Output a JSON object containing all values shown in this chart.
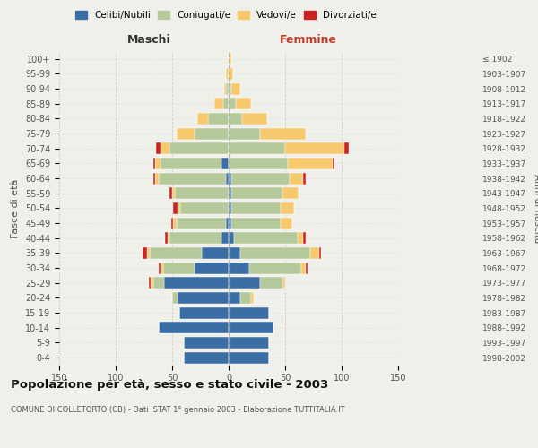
{
  "age_groups": [
    "100+",
    "95-99",
    "90-94",
    "85-89",
    "80-84",
    "75-79",
    "70-74",
    "65-69",
    "60-64",
    "55-59",
    "50-54",
    "45-49",
    "40-44",
    "35-39",
    "30-34",
    "25-29",
    "20-24",
    "15-19",
    "10-14",
    "5-9",
    "0-4"
  ],
  "birth_years": [
    "≤ 1902",
    "1903-1907",
    "1908-1912",
    "1913-1917",
    "1918-1922",
    "1923-1927",
    "1928-1932",
    "1933-1937",
    "1938-1942",
    "1943-1947",
    "1948-1952",
    "1953-1957",
    "1958-1962",
    "1963-1967",
    "1968-1972",
    "1973-1977",
    "1978-1982",
    "1983-1987",
    "1988-1992",
    "1993-1997",
    "1998-2002"
  ],
  "male_celibi": [
    0,
    0,
    0,
    0,
    0,
    0,
    0,
    6,
    2,
    0,
    0,
    2,
    6,
    24,
    30,
    57,
    45,
    44,
    62,
    40,
    40
  ],
  "male_coniugati": [
    0,
    0,
    2,
    5,
    18,
    30,
    52,
    54,
    60,
    48,
    43,
    44,
    46,
    46,
    28,
    10,
    5,
    0,
    0,
    0,
    0
  ],
  "male_vedovi": [
    0,
    2,
    2,
    8,
    10,
    16,
    8,
    5,
    3,
    2,
    2,
    3,
    2,
    2,
    2,
    2,
    0,
    0,
    0,
    0,
    0
  ],
  "male_divorziati": [
    0,
    0,
    0,
    0,
    0,
    0,
    4,
    2,
    2,
    2,
    4,
    2,
    2,
    4,
    2,
    2,
    0,
    0,
    0,
    0,
    0
  ],
  "female_nubili": [
    0,
    0,
    0,
    0,
    0,
    0,
    0,
    0,
    2,
    2,
    2,
    2,
    5,
    10,
    18,
    28,
    10,
    36,
    40,
    36,
    36
  ],
  "female_coniugate": [
    0,
    0,
    2,
    6,
    12,
    28,
    50,
    52,
    52,
    46,
    44,
    44,
    56,
    62,
    46,
    20,
    10,
    0,
    0,
    0,
    0
  ],
  "female_vedove": [
    2,
    4,
    8,
    14,
    22,
    40,
    52,
    40,
    12,
    14,
    12,
    10,
    5,
    8,
    4,
    2,
    2,
    0,
    0,
    0,
    0
  ],
  "female_divorziate": [
    0,
    0,
    0,
    0,
    0,
    0,
    4,
    2,
    2,
    0,
    0,
    0,
    2,
    2,
    2,
    0,
    0,
    0,
    0,
    0,
    0
  ],
  "color_celibi": "#3a6ea5",
  "color_coniugati": "#b5c99a",
  "color_vedovi": "#f7c96e",
  "color_divorziati": "#cc2222",
  "xlim": 150,
  "title": "Popolazione per età, sesso e stato civile - 2003",
  "subtitle": "COMUNE DI COLLETORTO (CB) - Dati ISTAT 1° gennaio 2003 - Elaborazione TUTTITALIA.IT",
  "ylabel_left": "Fasce di età",
  "ylabel_right": "Anni di nascita",
  "label_maschi": "Maschi",
  "label_femmine": "Femmine",
  "legend_labels": [
    "Celibi/Nubili",
    "Coniugati/e",
    "Vedovi/e",
    "Divorziati/e"
  ],
  "bg_color": "#f0f0eb",
  "grid_color": "#cccccc"
}
